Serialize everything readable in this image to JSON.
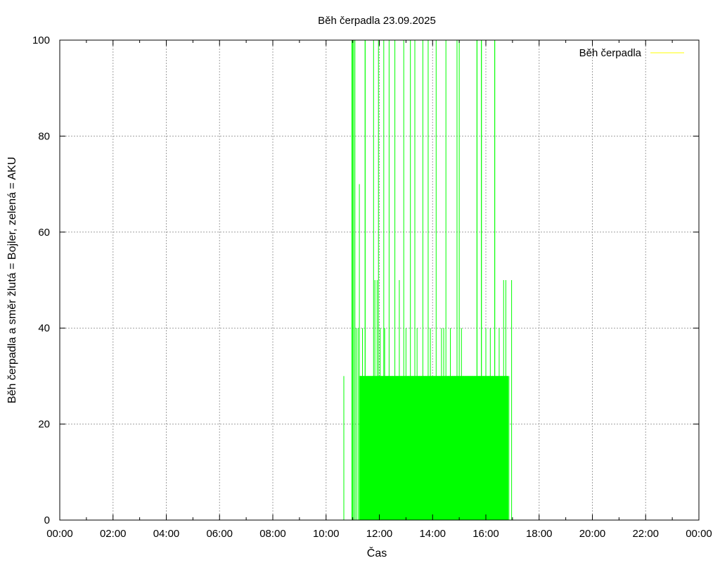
{
  "chart_data": {
    "type": "line",
    "title": "Běh čerpadla 23.09.2025",
    "xlabel": "Čas",
    "ylabel": "Běh čerpadla a směr žlutá = Bojler, zelená = AKU",
    "xlim": [
      "00:00",
      "24:00"
    ],
    "ylim": [
      0,
      100
    ],
    "x_ticks": [
      "00:00",
      "02:00",
      "04:00",
      "06:00",
      "08:00",
      "10:00",
      "12:00",
      "14:00",
      "16:00",
      "18:00",
      "20:00",
      "22:00",
      "00:00"
    ],
    "y_ticks": [
      0,
      20,
      40,
      60,
      80,
      100
    ],
    "grid": true,
    "legend_position": "top-right",
    "series": [
      {
        "name": "Běh čerpadla",
        "color": "#ffff00",
        "points": []
      },
      {
        "color": "#00ff00",
        "points": [
          [
            "10:40",
            30
          ],
          [
            "11:00",
            100
          ],
          [
            "11:05",
            100
          ],
          [
            "11:08",
            40
          ],
          [
            "11:12",
            40
          ],
          [
            "11:15",
            70
          ],
          [
            "11:18",
            30
          ],
          [
            "11:22",
            40
          ],
          [
            "11:25",
            30
          ],
          [
            "11:28",
            100
          ],
          [
            "11:32",
            30
          ],
          [
            "11:36",
            30
          ],
          [
            "11:40",
            30
          ],
          [
            "11:45",
            30
          ],
          [
            "11:50",
            50
          ],
          [
            "11:53",
            30
          ],
          [
            "11:55",
            50
          ],
          [
            "11:58",
            30
          ],
          [
            "12:02",
            40
          ],
          [
            "12:05",
            30
          ],
          [
            "12:08",
            30
          ],
          [
            "12:12",
            40
          ],
          [
            "12:15",
            30
          ],
          [
            "12:20",
            30
          ],
          [
            "12:25",
            30
          ],
          [
            "12:30",
            30
          ],
          [
            "12:35",
            30
          ],
          [
            "12:40",
            30
          ],
          [
            "12:45",
            50
          ],
          [
            "12:50",
            30
          ],
          [
            "12:55",
            30
          ],
          [
            "13:00",
            40
          ],
          [
            "13:05",
            30
          ],
          [
            "13:10",
            30
          ],
          [
            "13:15",
            30
          ],
          [
            "13:20",
            30
          ],
          [
            "13:25",
            40
          ],
          [
            "13:30",
            30
          ],
          [
            "13:35",
            30
          ],
          [
            "13:40",
            30
          ],
          [
            "13:45",
            30
          ],
          [
            "13:50",
            30
          ],
          [
            "13:55",
            40
          ],
          [
            "14:00",
            30
          ],
          [
            "14:05",
            30
          ],
          [
            "14:10",
            30
          ],
          [
            "14:15",
            30
          ],
          [
            "14:20",
            40
          ],
          [
            "14:25",
            40
          ],
          [
            "14:30",
            30
          ],
          [
            "14:35",
            30
          ],
          [
            "14:40",
            40
          ],
          [
            "14:45",
            30
          ],
          [
            "14:50",
            30
          ],
          [
            "14:55",
            30
          ],
          [
            "15:00",
            100
          ],
          [
            "15:05",
            40
          ],
          [
            "15:10",
            30
          ],
          [
            "15:15",
            30
          ],
          [
            "15:20",
            30
          ],
          [
            "15:25",
            30
          ],
          [
            "15:30",
            30
          ],
          [
            "15:35",
            30
          ],
          [
            "15:40",
            100
          ],
          [
            "15:45",
            30
          ],
          [
            "15:50",
            100
          ],
          [
            "15:55",
            30
          ],
          [
            "16:00",
            40
          ],
          [
            "16:05",
            30
          ],
          [
            "16:10",
            40
          ],
          [
            "16:15",
            30
          ],
          [
            "16:20",
            100
          ],
          [
            "16:30",
            40
          ],
          [
            "16:35",
            30
          ],
          [
            "16:40",
            50
          ],
          [
            "16:45",
            50
          ],
          [
            "16:52",
            30
          ],
          [
            "16:58",
            50
          ]
        ],
        "spikes_100": [
          "10:58",
          "11:02",
          "11:28",
          "11:47",
          "11:58",
          "12:10",
          "12:22",
          "12:35",
          "12:55",
          "13:10",
          "13:20",
          "13:38",
          "13:50",
          "14:08",
          "14:30",
          "14:55",
          "15:40",
          "15:50",
          "16:20"
        ]
      }
    ]
  }
}
